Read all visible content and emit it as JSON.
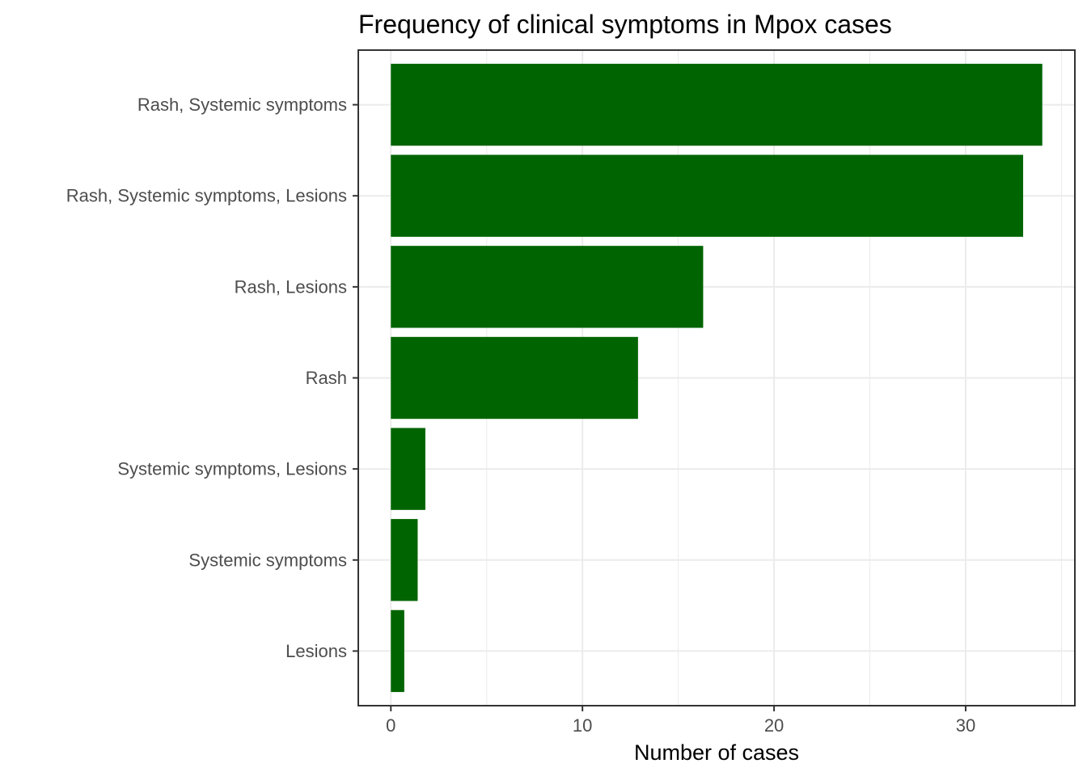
{
  "chart_data": {
    "type": "bar",
    "orientation": "horizontal",
    "title": "Frequency of clinical symptoms in Mpox cases",
    "xlabel": "Number of cases",
    "ylabel": "",
    "categories": [
      "Rash, Systemic symptoms",
      "Rash, Systemic symptoms, Lesions",
      "Rash, Lesions",
      "Rash",
      "Systemic symptoms, Lesions",
      "Systemic symptoms",
      "Lesions"
    ],
    "values": [
      34,
      33,
      16.3,
      12.9,
      1.8,
      1.4,
      0.7
    ],
    "xlim": [
      -1.7,
      35.7
    ],
    "x_ticks": [
      0,
      10,
      20,
      30
    ],
    "x_tick_labels": [
      "0",
      "10",
      "20",
      "30"
    ],
    "x_minor_ticks": [
      5,
      15,
      25,
      35
    ],
    "grid": true,
    "bar_color": "#006400",
    "legend": "none"
  }
}
